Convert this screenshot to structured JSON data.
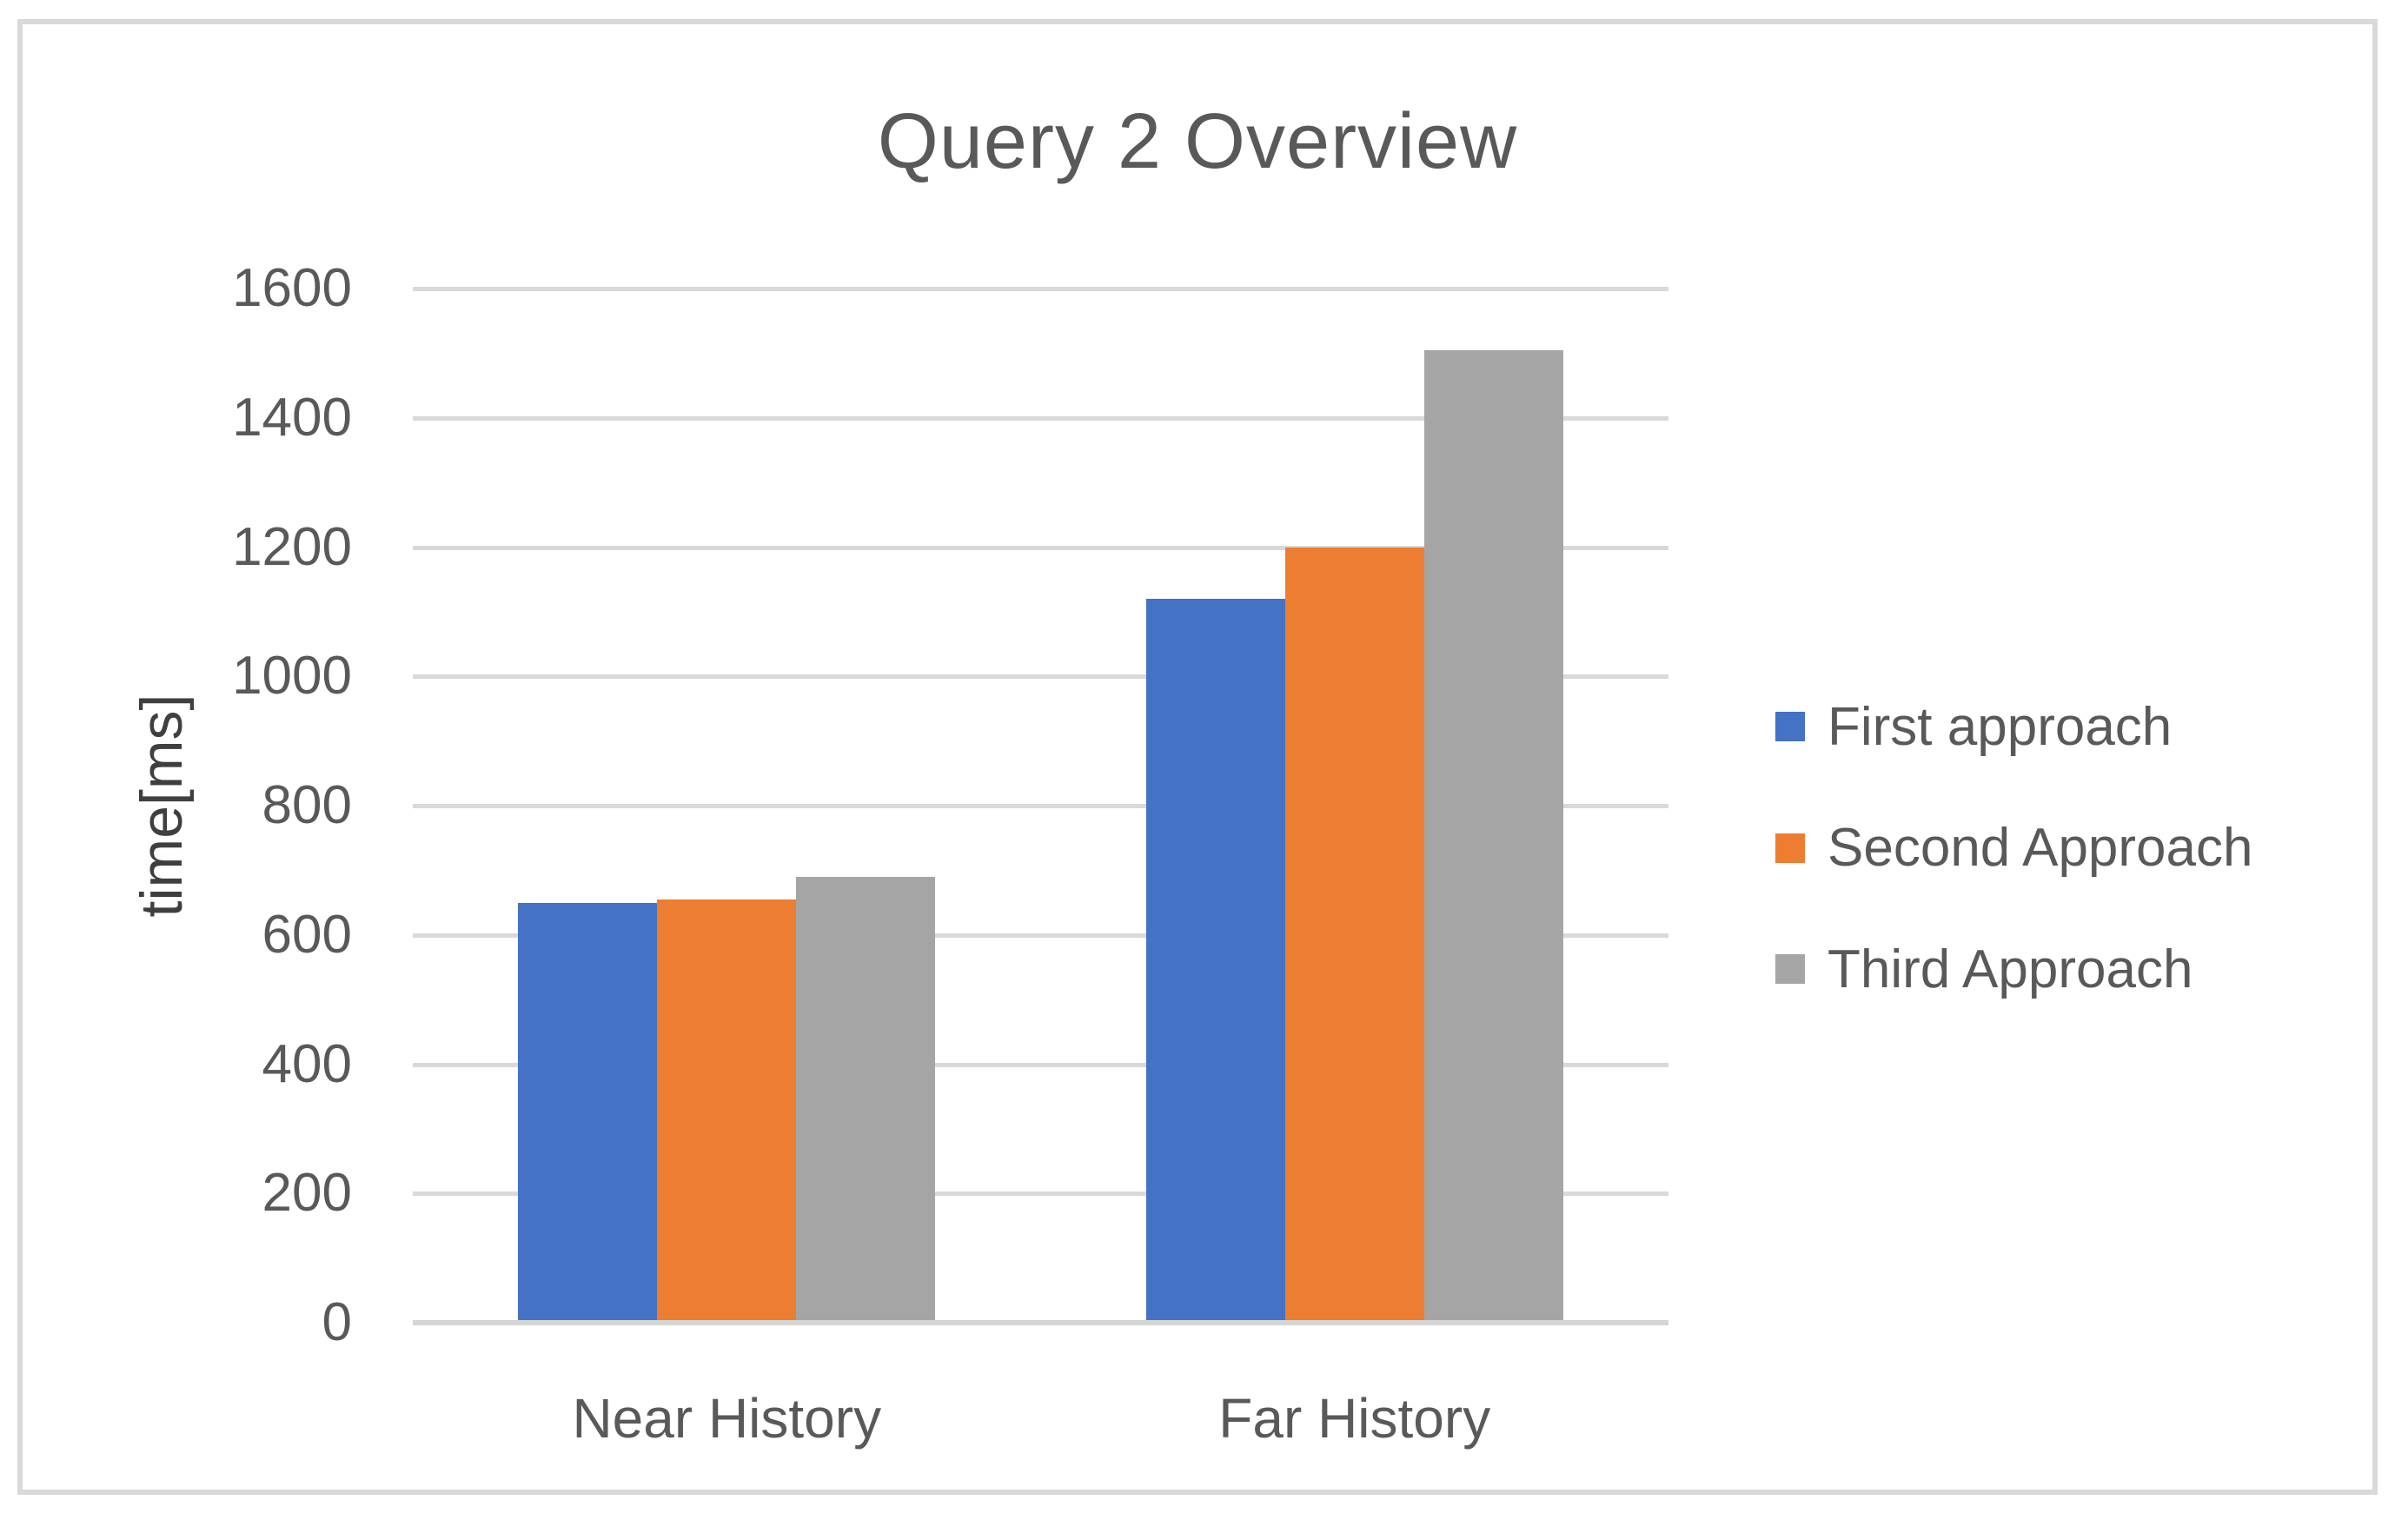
{
  "chart_data": {
    "type": "bar",
    "title": "Query 2 Overview",
    "ylabel": "time[ms]",
    "xlabel": "",
    "categories": [
      "Near History",
      "Far History"
    ],
    "series": [
      {
        "name": "First approach",
        "color": "#4472C4",
        "values": [
          650,
          1120
        ]
      },
      {
        "name": "Second Approach",
        "color": "#ED7D31",
        "values": [
          655,
          1200
        ]
      },
      {
        "name": "Third Approach",
        "color": "#A5A5A5",
        "values": [
          690,
          1505
        ]
      }
    ],
    "ylim": [
      0,
      1600
    ],
    "yticks": [
      0,
      200,
      400,
      600,
      800,
      1000,
      1200,
      1400,
      1600
    ],
    "grid": true,
    "legend_position": "right",
    "colors": {
      "gridline": "#D9D9D9",
      "axis_line": "#D5D5D5",
      "text": "#595959",
      "axis_title_text": "#3F3F3F",
      "frame_border": "#D9D9D9",
      "background": "#FFFFFF"
    }
  }
}
